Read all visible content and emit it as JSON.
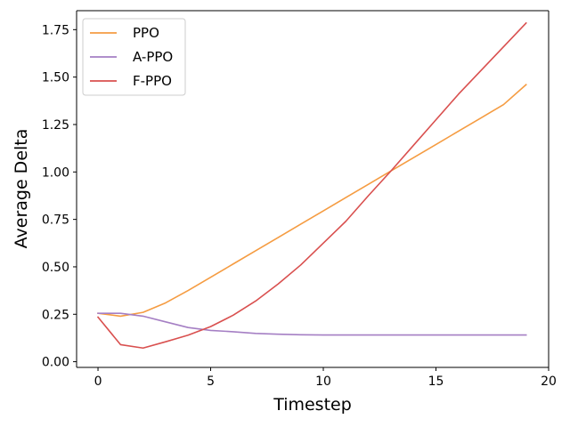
{
  "chart_data": {
    "type": "line",
    "xlabel": "Timestep",
    "ylabel": "Average Delta",
    "xlim": [
      -0.95,
      20
    ],
    "ylim": [
      -0.03,
      1.85
    ],
    "xticks": [
      0,
      5,
      10,
      15,
      20
    ],
    "yticks": [
      0.0,
      0.25,
      0.5,
      0.75,
      1.0,
      1.25,
      1.5,
      1.75
    ],
    "ytick_labels": [
      "0.00",
      "0.25",
      "0.50",
      "0.75",
      "1.00",
      "1.25",
      "1.50",
      "1.75"
    ],
    "grid": false,
    "legend_position": "top-left",
    "x": [
      0,
      1,
      2,
      3,
      4,
      5,
      6,
      7,
      8,
      9,
      10,
      11,
      12,
      13,
      14,
      15,
      16,
      17,
      18,
      19
    ],
    "series": [
      {
        "name": "PPO",
        "color": "#f59c42",
        "values": [
          0.255,
          0.24,
          0.26,
          0.31,
          0.375,
          0.445,
          0.515,
          0.585,
          0.655,
          0.725,
          0.795,
          0.865,
          0.935,
          1.005,
          1.075,
          1.145,
          1.215,
          1.285,
          1.355,
          1.46
        ]
      },
      {
        "name": "A-PPO",
        "color": "#a57fc4",
        "values": [
          0.255,
          0.255,
          0.24,
          0.21,
          0.18,
          0.165,
          0.158,
          0.149,
          0.145,
          0.142,
          0.141,
          0.141,
          0.141,
          0.141,
          0.141,
          0.141,
          0.141,
          0.141,
          0.141,
          0.141
        ]
      },
      {
        "name": "F-PPO",
        "color": "#d9504f",
        "values": [
          0.235,
          0.09,
          0.072,
          0.105,
          0.14,
          0.185,
          0.245,
          0.32,
          0.41,
          0.51,
          0.625,
          0.74,
          0.875,
          1.005,
          1.14,
          1.275,
          1.41,
          1.535,
          1.66,
          1.785
        ]
      }
    ]
  }
}
